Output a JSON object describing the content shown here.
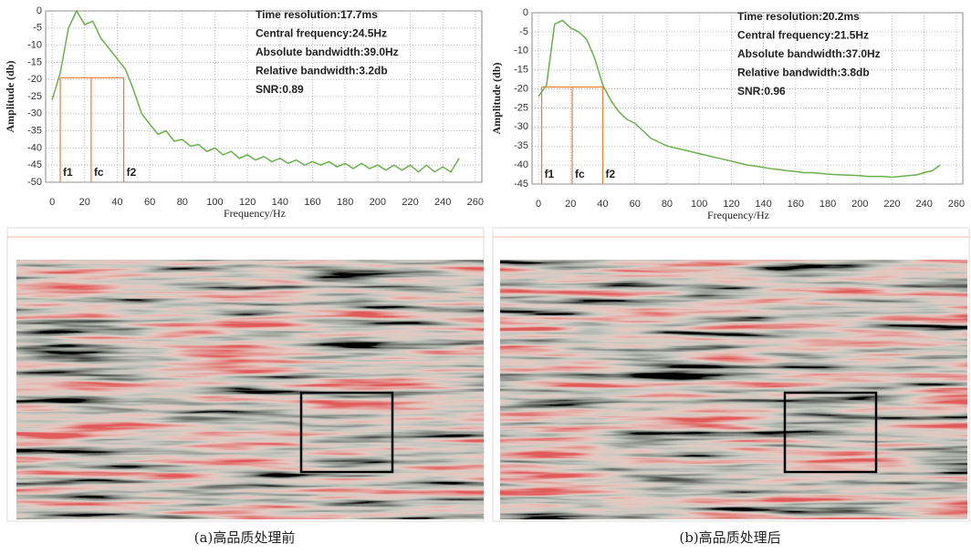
{
  "chart_data": [
    {
      "type": "line",
      "color": "#6ab04c",
      "xlabel": "Frequency/Hz",
      "ylabel": "Amplitude (db)",
      "x": [
        0,
        5,
        10,
        15,
        20,
        25,
        30,
        35,
        40,
        45,
        50,
        55,
        60,
        65,
        70,
        75,
        80,
        85,
        90,
        95,
        100,
        105,
        110,
        115,
        120,
        125,
        130,
        135,
        140,
        145,
        150,
        155,
        160,
        165,
        170,
        175,
        180,
        185,
        190,
        195,
        200,
        205,
        210,
        215,
        220,
        225,
        230,
        235,
        240,
        245,
        250
      ],
      "values": [
        -26,
        -18,
        -5,
        0,
        -4,
        -3,
        -8,
        -11,
        -14,
        -17,
        -23,
        -30,
        -33,
        -36,
        -35,
        -38,
        -37.5,
        -39.5,
        -39,
        -41,
        -40,
        -42,
        -41,
        -43,
        -42,
        -43.5,
        -42.5,
        -44,
        -43,
        -44.5,
        -43.5,
        -45,
        -44,
        -45,
        -44,
        -45.5,
        -44.5,
        -46,
        -44.5,
        -46,
        -45,
        -46.5,
        -45,
        -46.5,
        -45,
        -47,
        -45,
        -47,
        -45.5,
        -47,
        -43
      ],
      "xlim": [
        -4,
        264
      ],
      "xticks": [
        0,
        20,
        40,
        60,
        80,
        100,
        120,
        140,
        160,
        180,
        200,
        220,
        240,
        260
      ],
      "ylim": [
        -50,
        0
      ],
      "yticks": [
        0,
        -5,
        -10,
        -15,
        -20,
        -25,
        -30,
        -35,
        -40,
        -45,
        -50
      ],
      "grid": true,
      "annotations": [
        "Time resolution:17.7ms",
        "Central frequency:24.5Hz",
        "Absolute bandwidth:39.0Hz",
        "Relative bandwidth:3.2db",
        "SNR:0.89"
      ],
      "marker_level": -19.5,
      "marker_color": "#f07b2a",
      "markers": [
        {
          "label": "f1",
          "x": 5
        },
        {
          "label": "fc",
          "x": 24
        },
        {
          "label": "f2",
          "x": 44
        }
      ]
    },
    {
      "type": "line",
      "color": "#6ab04c",
      "xlabel": "Frequency/Hz",
      "ylabel": "Amplitude (db)",
      "x": [
        0,
        5,
        10,
        15,
        20,
        25,
        30,
        35,
        40,
        45,
        50,
        55,
        60,
        65,
        70,
        75,
        80,
        85,
        90,
        95,
        100,
        105,
        110,
        115,
        120,
        125,
        130,
        135,
        140,
        145,
        150,
        155,
        160,
        165,
        170,
        175,
        180,
        185,
        190,
        195,
        200,
        205,
        210,
        215,
        220,
        225,
        230,
        235,
        240,
        245,
        250
      ],
      "values": [
        -22,
        -19,
        -3,
        -2,
        -4,
        -5,
        -7,
        -12,
        -19,
        -23,
        -26,
        -28,
        -29,
        -31,
        -33,
        -34,
        -35,
        -35.5,
        -36,
        -36.5,
        -37,
        -37.5,
        -38,
        -38.5,
        -39,
        -39.5,
        -40,
        -40.3,
        -40.6,
        -41,
        -41.2,
        -41.5,
        -41.7,
        -42,
        -42,
        -42.2,
        -42.4,
        -42.5,
        -42.6,
        -42.7,
        -42.8,
        -43,
        -43,
        -43,
        -43.2,
        -43,
        -42.8,
        -42.6,
        -42,
        -41.5,
        -40
      ],
      "xlim": [
        -4,
        264
      ],
      "xticks": [
        0,
        20,
        40,
        60,
        80,
        100,
        120,
        140,
        160,
        180,
        200,
        220,
        240,
        260
      ],
      "ylim": [
        -45,
        0
      ],
      "yticks": [
        0,
        -5,
        -10,
        -15,
        -20,
        -25,
        -30,
        -35,
        -40,
        -45
      ],
      "grid": true,
      "annotations": [
        "Time resolution:20.2ms",
        "Central frequency:21.5Hz",
        "Absolute bandwidth:37.0Hz",
        "Relative bandwidth:3.8db",
        "SNR:0.96"
      ],
      "marker_level": -19.5,
      "marker_color": "#f07b2a",
      "markers": [
        {
          "label": "f1",
          "x": 2
        },
        {
          "label": "fc",
          "x": 21
        },
        {
          "label": "f2",
          "x": 40
        }
      ]
    }
  ],
  "captions": [
    "(a)高品质处理前",
    "(b)高品质处理后"
  ]
}
